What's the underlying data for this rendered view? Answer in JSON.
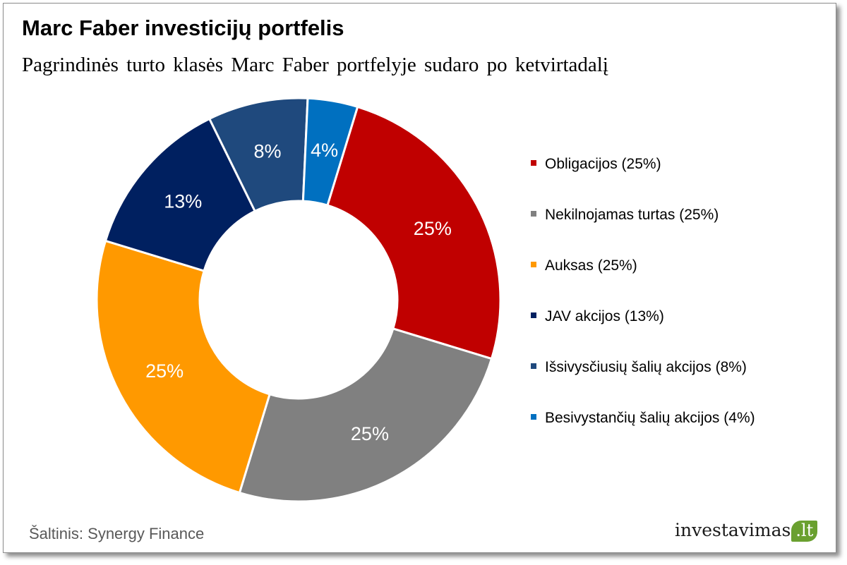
{
  "title": "Marc Faber investicijų portfelis",
  "subtitle": "Pagrindinės turto klasės Marc Faber portfelyje sudaro po ketvirtadalį",
  "source": "Šaltinis: Synergy Finance",
  "brand": {
    "name": "investavimas",
    "suffix": ".lt"
  },
  "chart_data": {
    "type": "pie",
    "variant": "donut",
    "legend_position": "right",
    "series": [
      {
        "name": "Obligacijos (25%)",
        "value": 25,
        "label": "25%",
        "color": "#C00000"
      },
      {
        "name": "Nekilnojamas turtas (25%)",
        "value": 25,
        "label": "25%",
        "color": "#808080"
      },
      {
        "name": "Auksas (25%)",
        "value": 25,
        "label": "25%",
        "color": "#FF9900"
      },
      {
        "name": "JAV akcijos (13%)",
        "value": 13,
        "label": "13%",
        "color": "#002060"
      },
      {
        "name": "Išsivysčiusių šalių akcijos (8%)",
        "value": 8,
        "label": "8%",
        "color": "#1F497D"
      },
      {
        "name": "Besivystančių šalių akcijos (4%)",
        "value": 4,
        "label": "4%",
        "color": "#0070C0"
      }
    ]
  }
}
